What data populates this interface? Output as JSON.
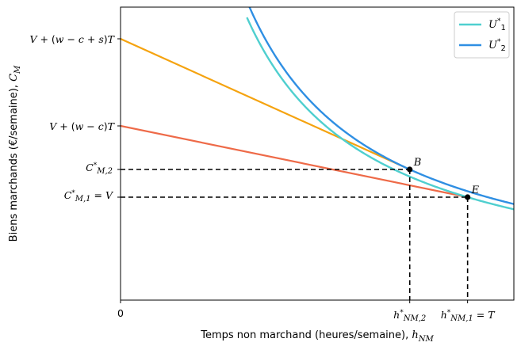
{
  "chart_data": {
    "type": "line",
    "title": "",
    "xlabel": "Temps non marchand (heures/semaine), h_NM",
    "ylabel": "Biens marchands (€/semaine), C_M",
    "xlim": [
      0,
      1.36
    ],
    "ylim": [
      0,
      3.7
    ],
    "grid": false,
    "legend_position": "top-right",
    "x_ticks": [
      {
        "x": 0,
        "label": "0"
      },
      {
        "x": 1.0,
        "label": "h*NM,2"
      },
      {
        "x": 1.2,
        "label": "h*NM,1 = T"
      }
    ],
    "y_ticks": [
      {
        "y": 3.3,
        "label": "V + (w − c + s)T"
      },
      {
        "y": 2.2,
        "label": "V + (w − c)T"
      },
      {
        "y": 1.65,
        "label": "C*M,2"
      },
      {
        "y": 1.3,
        "label": "C*M,1 = V"
      }
    ],
    "budget_lines": [
      {
        "color": "#f5a30f",
        "x": [
          0,
          1.0
        ],
        "y": [
          3.3,
          1.65
        ]
      },
      {
        "color": "#ee6a48",
        "x": [
          0,
          1.2
        ],
        "y": [
          2.2,
          1.3
        ]
      }
    ],
    "series": [
      {
        "name": "U*1",
        "color": "#4fcfcf",
        "k": 1.56,
        "x_range": [
          0.437,
          1.36
        ]
      },
      {
        "name": "U*2",
        "color": "#2f8fe3",
        "k": 1.65,
        "x_range": [
          0.446,
          1.36
        ]
      }
    ],
    "points": [
      {
        "label": "B",
        "x": 1.0,
        "y": 1.65
      },
      {
        "label": "E",
        "x": 1.2,
        "y": 1.3
      }
    ],
    "dashed_guides": [
      {
        "x": 1.0,
        "y": 1.65
      },
      {
        "x": 1.2,
        "y": 1.3
      }
    ]
  }
}
